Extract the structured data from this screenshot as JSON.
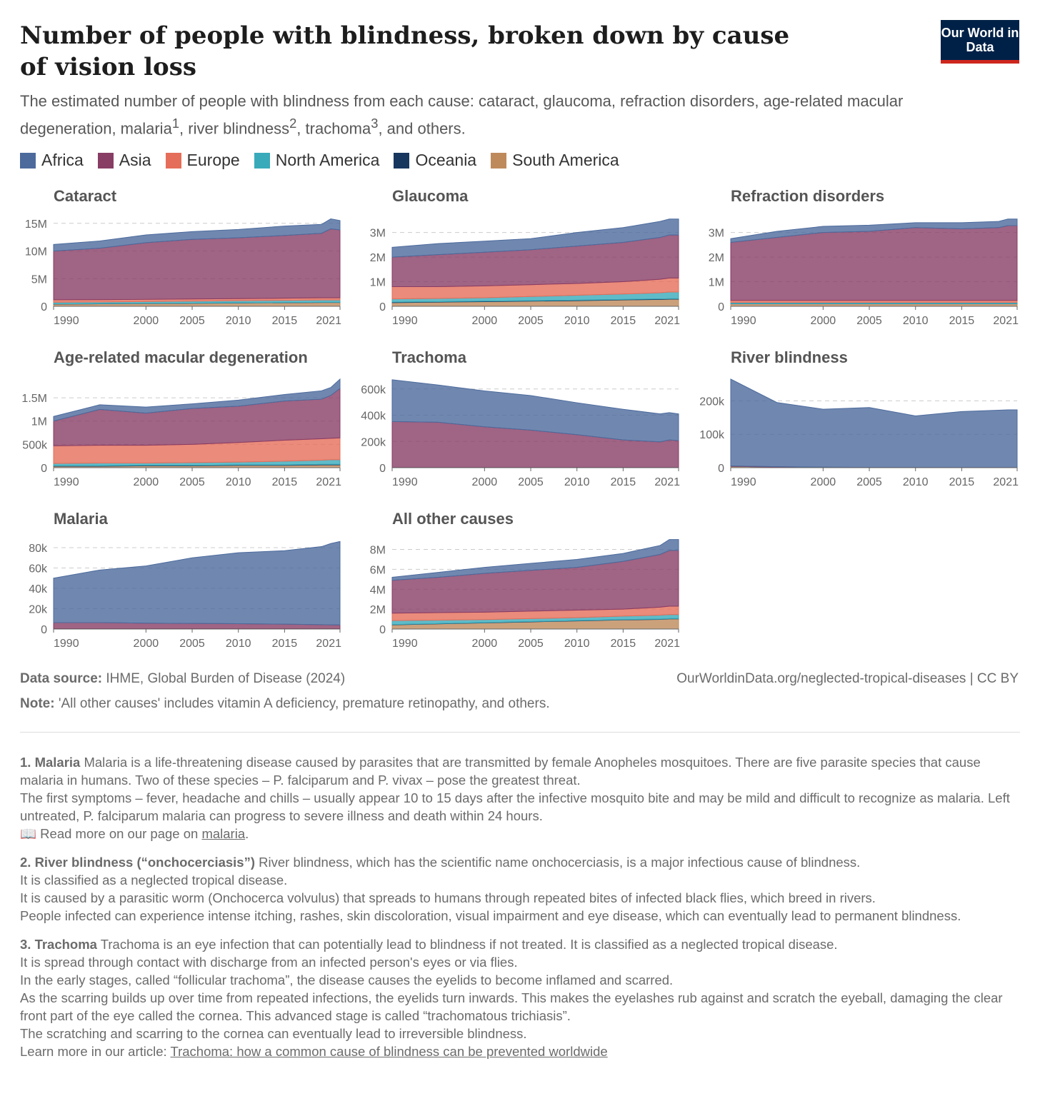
{
  "header": {
    "title": "Number of people with blindness, broken down by cause of vision loss",
    "logo_text": "Our World in Data",
    "subtitle_parts": [
      "The estimated number of people with blindness from each cause: cataract, glaucoma, refraction disorders, age-related macular degeneration, malaria",
      "1",
      ", river blindness",
      "2",
      ", trachoma",
      "3",
      ", and others."
    ]
  },
  "colors": {
    "Africa": "#4c6a9c",
    "Asia": "#883d65",
    "Europe": "#e56e5a",
    "North America": "#38aaba",
    "Oceania": "#18375f",
    "South America": "#be8a5b"
  },
  "legend": [
    "Africa",
    "Asia",
    "Europe",
    "North America",
    "Oceania",
    "South America"
  ],
  "chart_data": [
    {
      "type": "area",
      "title": "Cataract",
      "x": [
        1990,
        1995,
        2000,
        2005,
        2010,
        2015,
        2019,
        2020,
        2021
      ],
      "ymax": 16000000,
      "yticks": [
        0,
        5000000,
        10000000,
        15000000
      ],
      "ytick_labels": [
        "0",
        "5M",
        "10M",
        "15M"
      ],
      "xticks": [
        1990,
        2000,
        2005,
        2010,
        2015,
        2021
      ],
      "series": [
        {
          "name": "South America",
          "values": [
            400000,
            450000,
            500000,
            550000,
            600000,
            650000,
            700000,
            700000,
            700000
          ]
        },
        {
          "name": "Oceania",
          "values": [
            30000,
            30000,
            30000,
            30000,
            30000,
            30000,
            30000,
            30000,
            30000
          ]
        },
        {
          "name": "North America",
          "values": [
            300000,
            300000,
            320000,
            350000,
            380000,
            400000,
            420000,
            420000,
            420000
          ]
        },
        {
          "name": "Europe",
          "values": [
            450000,
            420000,
            400000,
            400000,
            380000,
            380000,
            380000,
            380000,
            380000
          ]
        },
        {
          "name": "Asia",
          "values": [
            8800000,
            9300000,
            10250000,
            10770000,
            11000000,
            11340000,
            11670000,
            12470000,
            12270000
          ]
        },
        {
          "name": "Africa",
          "values": [
            1200000,
            1300000,
            1400000,
            1400000,
            1500000,
            1700000,
            1600000,
            1800000,
            1700000
          ]
        }
      ]
    },
    {
      "type": "area",
      "title": "Glaucoma",
      "x": [
        1990,
        1995,
        2000,
        2005,
        2010,
        2015,
        2019,
        2020,
        2021
      ],
      "ymax": 3600000,
      "yticks": [
        0,
        1000000,
        2000000,
        3000000
      ],
      "ytick_labels": [
        "0",
        "1M",
        "2M",
        "3M"
      ],
      "xticks": [
        1990,
        2000,
        2005,
        2010,
        2015,
        2021
      ],
      "series": [
        {
          "name": "South America",
          "values": [
            150000,
            170000,
            190000,
            210000,
            230000,
            260000,
            280000,
            290000,
            290000
          ]
        },
        {
          "name": "Oceania",
          "values": [
            20000,
            20000,
            20000,
            20000,
            20000,
            20000,
            20000,
            20000,
            20000
          ]
        },
        {
          "name": "North America",
          "values": [
            130000,
            130000,
            140000,
            170000,
            200000,
            220000,
            250000,
            270000,
            270000
          ]
        },
        {
          "name": "Europe",
          "values": [
            500000,
            480000,
            480000,
            480000,
            480000,
            500000,
            550000,
            570000,
            570000
          ]
        },
        {
          "name": "Asia",
          "values": [
            1200000,
            1300000,
            1370000,
            1420000,
            1520000,
            1600000,
            1700000,
            1750000,
            1750000
          ]
        },
        {
          "name": "Africa",
          "values": [
            400000,
            450000,
            450000,
            450000,
            550000,
            600000,
            650000,
            650000,
            650000
          ]
        }
      ]
    },
    {
      "type": "area",
      "title": "Refraction disorders",
      "x": [
        1990,
        1995,
        2000,
        2005,
        2010,
        2015,
        2019,
        2020,
        2021
      ],
      "ymax": 3600000,
      "yticks": [
        0,
        1000000,
        2000000,
        3000000
      ],
      "ytick_labels": [
        "0",
        "1M",
        "2M",
        "3M"
      ],
      "xticks": [
        1990,
        2000,
        2005,
        2010,
        2015,
        2021
      ],
      "series": [
        {
          "name": "South America",
          "values": [
            100000,
            100000,
            100000,
            100000,
            100000,
            100000,
            100000,
            100000,
            100000
          ]
        },
        {
          "name": "Oceania",
          "values": [
            10000,
            10000,
            10000,
            10000,
            10000,
            10000,
            10000,
            10000,
            10000
          ]
        },
        {
          "name": "North America",
          "values": [
            50000,
            50000,
            50000,
            50000,
            50000,
            50000,
            50000,
            50000,
            50000
          ]
        },
        {
          "name": "Europe",
          "values": [
            80000,
            80000,
            80000,
            80000,
            80000,
            80000,
            80000,
            80000,
            80000
          ]
        },
        {
          "name": "Asia",
          "values": [
            2360000,
            2560000,
            2760000,
            2810000,
            2960000,
            2910000,
            2960000,
            3040000,
            3040000
          ]
        },
        {
          "name": "Africa",
          "values": [
            150000,
            250000,
            250000,
            250000,
            200000,
            250000,
            250000,
            270000,
            270000
          ]
        }
      ]
    },
    {
      "type": "area",
      "title": "Age-related macular degeneration",
      "x": [
        1990,
        1995,
        2000,
        2005,
        2010,
        2015,
        2019,
        2020,
        2021
      ],
      "ymax": 1900000,
      "yticks": [
        0,
        500000,
        1000000,
        1500000
      ],
      "ytick_labels": [
        "0",
        "500k",
        "1M",
        "1.5M"
      ],
      "xticks": [
        1990,
        2000,
        2005,
        2010,
        2015,
        2021
      ],
      "series": [
        {
          "name": "South America",
          "values": [
            30000,
            30000,
            40000,
            40000,
            50000,
            50000,
            60000,
            60000,
            60000
          ]
        },
        {
          "name": "Oceania",
          "values": [
            10000,
            10000,
            10000,
            10000,
            10000,
            10000,
            10000,
            10000,
            10000
          ]
        },
        {
          "name": "North America",
          "values": [
            50000,
            60000,
            50000,
            60000,
            60000,
            80000,
            90000,
            100000,
            100000
          ]
        },
        {
          "name": "Europe",
          "values": [
            380000,
            380000,
            380000,
            390000,
            420000,
            450000,
            460000,
            460000,
            470000
          ]
        },
        {
          "name": "Asia",
          "values": [
            530000,
            770000,
            690000,
            770000,
            780000,
            840000,
            850000,
            920000,
            1060000
          ]
        },
        {
          "name": "Africa",
          "values": [
            100000,
            100000,
            130000,
            100000,
            130000,
            140000,
            180000,
            170000,
            200000
          ]
        }
      ]
    },
    {
      "type": "area",
      "title": "Trachoma",
      "x": [
        1990,
        1995,
        2000,
        2005,
        2010,
        2015,
        2019,
        2020,
        2021
      ],
      "ymax": 675000,
      "yticks": [
        0,
        200000,
        400000,
        600000
      ],
      "ytick_labels": [
        "0",
        "200k",
        "400k",
        "600k"
      ],
      "xticks": [
        1990,
        2000,
        2005,
        2010,
        2015,
        2021
      ],
      "series": [
        {
          "name": "South America",
          "values": [
            1000,
            1000,
            1000,
            1000,
            1000,
            1000,
            1000,
            1000,
            1000
          ]
        },
        {
          "name": "Oceania",
          "values": [
            500,
            500,
            500,
            500,
            500,
            500,
            500,
            500,
            500
          ]
        },
        {
          "name": "North America",
          "values": [
            0,
            0,
            0,
            0,
            0,
            0,
            0,
            0,
            0
          ]
        },
        {
          "name": "Europe",
          "values": [
            0,
            0,
            0,
            0,
            0,
            0,
            0,
            0,
            0
          ]
        },
        {
          "name": "Asia",
          "values": [
            350000,
            345000,
            310000,
            285000,
            250000,
            210000,
            195000,
            210000,
            205000
          ]
        },
        {
          "name": "Africa",
          "values": [
            318500,
            283500,
            273500,
            263500,
            243500,
            233500,
            213500,
            208500,
            203500
          ]
        }
      ]
    },
    {
      "type": "area",
      "title": "River blindness",
      "x": [
        1990,
        1995,
        2000,
        2005,
        2010,
        2015,
        2019,
        2020,
        2021
      ],
      "ymax": 265000,
      "yticks": [
        0,
        100000,
        200000
      ],
      "ytick_labels": [
        "0",
        "100k",
        "200k"
      ],
      "xticks": [
        1990,
        2000,
        2005,
        2010,
        2015,
        2021
      ],
      "series": [
        {
          "name": "South America",
          "values": [
            4000,
            2000,
            500,
            300,
            200,
            100,
            100,
            100,
            100
          ]
        },
        {
          "name": "Oceania",
          "values": [
            0,
            0,
            0,
            0,
            0,
            0,
            0,
            0,
            0
          ]
        },
        {
          "name": "North America",
          "values": [
            0,
            0,
            0,
            0,
            0,
            0,
            0,
            0,
            0
          ]
        },
        {
          "name": "Europe",
          "values": [
            0,
            0,
            0,
            0,
            0,
            0,
            0,
            0,
            0
          ]
        },
        {
          "name": "Asia",
          "values": [
            1000,
            1000,
            1000,
            500,
            500,
            500,
            500,
            500,
            500
          ]
        },
        {
          "name": "Africa",
          "values": [
            260000,
            192000,
            173500,
            179200,
            154300,
            167400,
            171400,
            172400,
            172400
          ]
        }
      ]
    },
    {
      "type": "area",
      "title": "Malaria",
      "x": [
        1990,
        1995,
        2000,
        2005,
        2010,
        2015,
        2019,
        2020,
        2021
      ],
      "ymax": 87000,
      "yticks": [
        0,
        20000,
        40000,
        60000,
        80000
      ],
      "ytick_labels": [
        "0",
        "20k",
        "40k",
        "60k",
        "80k"
      ],
      "xticks": [
        1990,
        2000,
        2005,
        2010,
        2015,
        2021
      ],
      "series": [
        {
          "name": "South America",
          "values": [
            200,
            200,
            200,
            200,
            200,
            200,
            200,
            200,
            200
          ]
        },
        {
          "name": "Oceania",
          "values": [
            100,
            100,
            100,
            100,
            100,
            100,
            100,
            100,
            100
          ]
        },
        {
          "name": "North America",
          "values": [
            0,
            0,
            0,
            0,
            0,
            0,
            0,
            0,
            0
          ]
        },
        {
          "name": "Europe",
          "values": [
            0,
            0,
            0,
            0,
            0,
            0,
            0,
            0,
            0
          ]
        },
        {
          "name": "Asia",
          "values": [
            6000,
            6000,
            5500,
            5200,
            5000,
            4500,
            4000,
            3800,
            3700
          ]
        },
        {
          "name": "Africa",
          "values": [
            43700,
            51700,
            56200,
            64500,
            69700,
            72200,
            76700,
            79900,
            82000
          ]
        }
      ]
    },
    {
      "type": "area",
      "title": "All other causes",
      "x": [
        1990,
        1995,
        2000,
        2005,
        2010,
        2015,
        2019,
        2020,
        2021
      ],
      "ymax": 8900000,
      "yticks": [
        0,
        2000000,
        4000000,
        6000000,
        8000000
      ],
      "ytick_labels": [
        "0",
        "2M",
        "4M",
        "6M",
        "8M"
      ],
      "xticks": [
        1990,
        2000,
        2005,
        2010,
        2015,
        2021
      ],
      "series": [
        {
          "name": "South America",
          "values": [
            420000,
            520000,
            620000,
            720000,
            820000,
            920000,
            970000,
            1020000,
            1020000
          ]
        },
        {
          "name": "Oceania",
          "values": [
            30000,
            30000,
            30000,
            30000,
            30000,
            30000,
            30000,
            30000,
            30000
          ]
        },
        {
          "name": "North America",
          "values": [
            400000,
            350000,
            300000,
            300000,
            300000,
            350000,
            400000,
            400000,
            400000
          ]
        },
        {
          "name": "Europe",
          "values": [
            750000,
            750000,
            750000,
            750000,
            750000,
            700000,
            800000,
            850000,
            850000
          ]
        },
        {
          "name": "Asia",
          "values": [
            3300000,
            3550000,
            3900000,
            4100000,
            4300000,
            4800000,
            5300000,
            5600000,
            5600000
          ]
        },
        {
          "name": "Africa",
          "values": [
            300000,
            500000,
            600000,
            700000,
            800000,
            800000,
            900000,
            1100000,
            1100000
          ]
        }
      ]
    }
  ],
  "footer": {
    "source_label": "Data source:",
    "source": "IHME, Global Burden of Disease (2024)",
    "url": "OurWorldinData.org/neglected-tropical-diseases | CC BY",
    "note_label": "Note:",
    "note": "'All other causes' includes vitamin A deficiency, premature retinopathy, and others."
  },
  "footnotes": [
    {
      "label": "1. Malaria",
      "lines": [
        "Malaria is a life-threatening disease caused by parasites that are transmitted by female Anopheles mosquitoes. There are five parasite species that cause malaria in humans. Two of these species – P. falciparum and P. vivax – pose the greatest threat.",
        "The first symptoms – fever, headache and chills – usually appear 10 to 15 days after the infective mosquito bite and may be mild and difficult to recognize as malaria. Left untreated, P. falciparum malaria can progress to severe illness and death within 24 hours."
      ],
      "link_prefix": "📖 Read more on our page on ",
      "link": "malaria",
      "link_suffix": "."
    },
    {
      "label": "2. River blindness (“onchocerciasis”)",
      "lines": [
        "River blindness, which has the scientific name onchocerciasis, is a major infectious cause of blindness.",
        "It is classified as a neglected tropical disease.",
        "It is caused by a parasitic worm (Onchocerca volvulus) that spreads to humans through repeated bites of infected black flies, which breed in rivers.",
        "People infected can experience intense itching, rashes, skin discoloration, visual impairment and eye disease, which can eventually lead to permanent blindness."
      ]
    },
    {
      "label": "3. Trachoma",
      "lines": [
        "Trachoma is an eye infection that can potentially lead to blindness if not treated. It is classified as a  neglected tropical disease.",
        "It is spread through contact with discharge from an infected person's eyes or via flies.",
        "In the early stages, called “follicular trachoma”, the disease causes the eyelids to become inflamed and scarred.",
        "As the scarring builds up over time from repeated infections, the eyelids turn inwards. This makes the eyelashes rub against and scratch the eyeball, damaging the clear front part of the eye called the cornea. This advanced stage is called “trachomatous trichiasis”.",
        "The scratching and scarring to the cornea can eventually lead to irreversible blindness."
      ],
      "link_prefix": "Learn more in our article: ",
      "link": "Trachoma: how a common cause of blindness can be prevented worldwide ",
      "link_suffix": ""
    }
  ]
}
